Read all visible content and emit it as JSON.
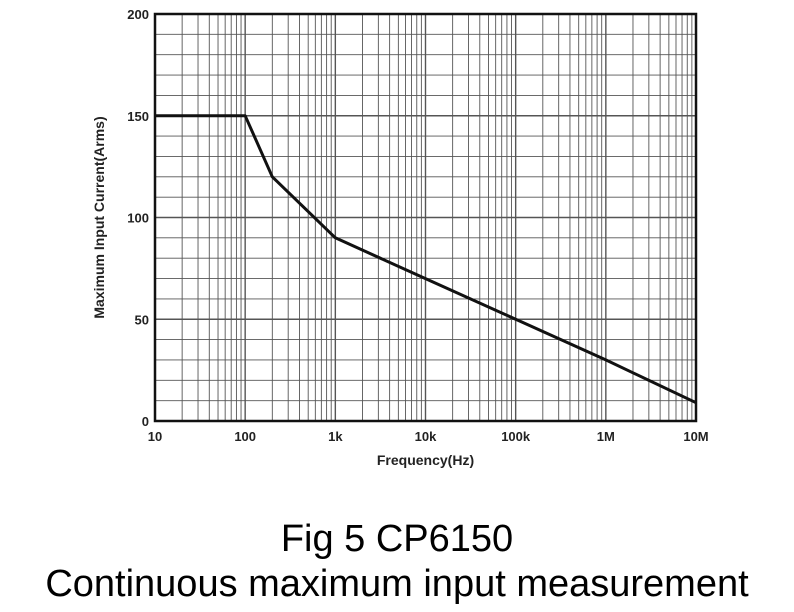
{
  "chart_data": {
    "type": "line",
    "xscale": "log",
    "xlim": [
      10,
      10000000
    ],
    "ylim": [
      0,
      200
    ],
    "xlabel": "Frequency(Hz)",
    "ylabel": "Maximum Input Current(Arms)",
    "grid": true,
    "x_ticks": [
      {
        "value": 10,
        "label": "10"
      },
      {
        "value": 100,
        "label": "100"
      },
      {
        "value": 1000,
        "label": "1k"
      },
      {
        "value": 10000,
        "label": "10k"
      },
      {
        "value": 100000,
        "label": "100k"
      },
      {
        "value": 1000000,
        "label": "1M"
      },
      {
        "value": 10000000,
        "label": "10M"
      }
    ],
    "y_ticks": [
      {
        "value": 0,
        "label": "0"
      },
      {
        "value": 50,
        "label": "50"
      },
      {
        "value": 100,
        "label": "100"
      },
      {
        "value": 150,
        "label": "150"
      },
      {
        "value": 200,
        "label": "200"
      }
    ],
    "series": [
      {
        "x": [
          10,
          100,
          200,
          1000,
          10000,
          100000,
          1000000,
          10000000
        ],
        "y": [
          150,
          150,
          120,
          90,
          70,
          50,
          30,
          9
        ]
      }
    ],
    "colors": {
      "line": "#111111",
      "grid": "#555555",
      "frame": "#111111"
    }
  },
  "caption": {
    "line1": "Fig 5 CP6150",
    "line2": "Continuous maximum input measurement"
  }
}
